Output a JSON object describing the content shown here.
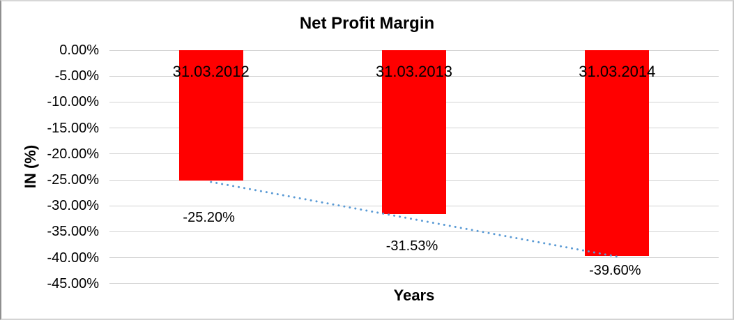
{
  "chart": {
    "title": "Net Profit Margin",
    "x_axis_title": "Years",
    "y_axis_title": "IN (%)"
  },
  "chart_data": {
    "type": "bar",
    "title": "Net Profit Margin",
    "xlabel": "Years",
    "ylabel": "IN (%)",
    "categories": [
      "31.03.2012",
      "31.03.2013",
      "31.03.2014"
    ],
    "series": [
      {
        "name": "Net Profit Margin",
        "values": [
          -25.2,
          -31.53,
          -39.6
        ]
      }
    ],
    "data_labels": [
      "-25.20%",
      "-31.53%",
      "-39.60%"
    ],
    "ytick_labels": [
      "0.00%",
      "-5.00%",
      "-10.00%",
      "-15.00%",
      "-20.00%",
      "-25.00%",
      "-30.00%",
      "-35.00%",
      "-40.00%",
      "-45.00%"
    ],
    "ylim": [
      -45,
      0
    ],
    "ytick_step": 5,
    "grid": true,
    "legend": "none",
    "bar_color": "#ff0000",
    "gridline_color": "#d2d2d2",
    "trendline": {
      "type": "linear",
      "style": "dotted",
      "color": "#5b9bd5",
      "start_value": -25.2,
      "end_value": -39.6
    }
  }
}
